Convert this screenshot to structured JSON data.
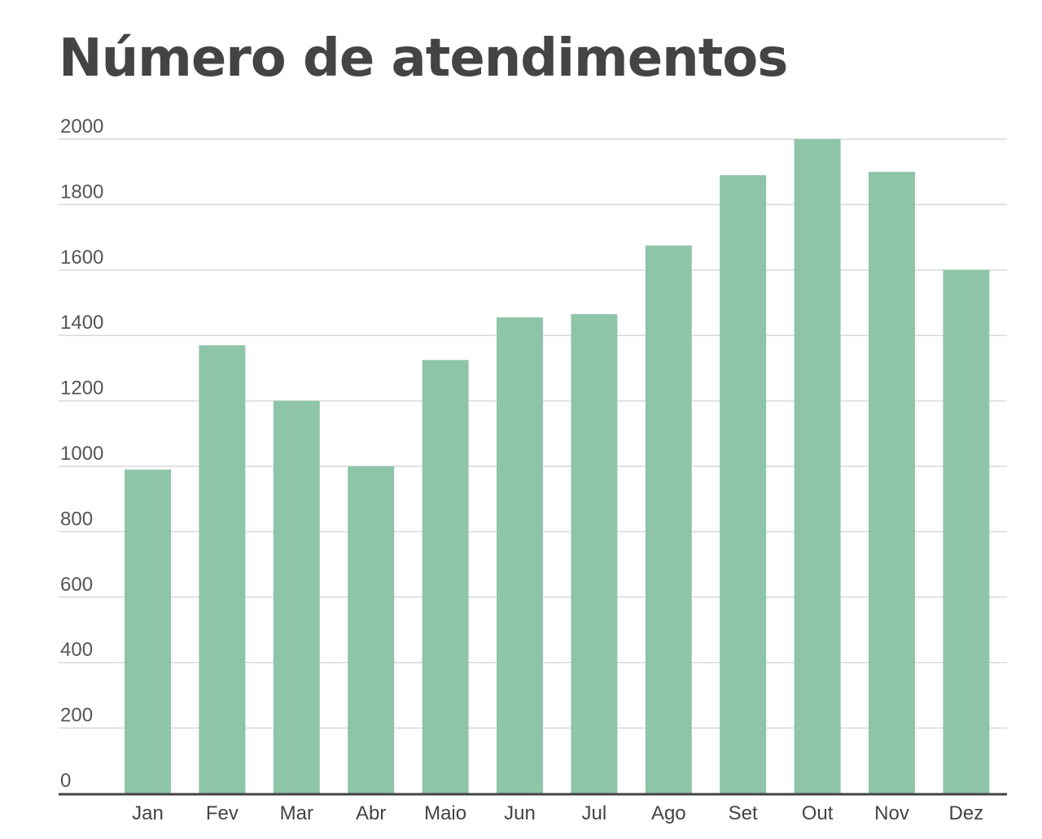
{
  "chart_data": {
    "type": "bar",
    "title": "Número de atendimentos",
    "categories": [
      "Jan",
      "Fev",
      "Mar",
      "Abr",
      "Maio",
      "Jun",
      "Jul",
      "Ago",
      "Set",
      "Out",
      "Nov",
      "Dez"
    ],
    "values": [
      990,
      1370,
      1200,
      1000,
      1325,
      1455,
      1465,
      1675,
      1890,
      2000,
      1900,
      1600
    ],
    "xlabel": "",
    "ylabel": "",
    "ylim": [
      0,
      2000
    ],
    "yticks": [
      0,
      200,
      400,
      600,
      800,
      1000,
      1200,
      1400,
      1600,
      1800,
      2000
    ],
    "grid": true,
    "legend": "none",
    "colors": {
      "bar": "#8ec5a8",
      "grid": "#d9d9d9",
      "baseline": "#444444",
      "title": "#444444"
    }
  }
}
